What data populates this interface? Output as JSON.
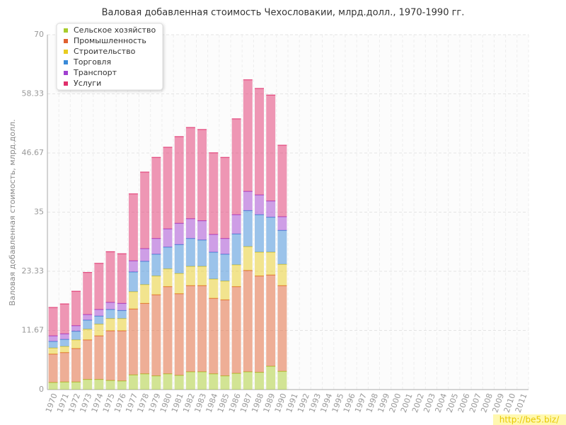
{
  "chart_data": {
    "type": "stacked_bar",
    "title": "Валовая добавленная стоимость Чехословакии, млрд.долл., 1970-1990 гг.",
    "y_label": "Валовая добавленная стоимость, млрд.долл.",
    "watermark": "http://be5.biz/",
    "categories": [
      "1970",
      "1971",
      "1972",
      "1973",
      "1974",
      "1975",
      "1976",
      "1977",
      "1978",
      "1979",
      "1980",
      "1981",
      "1982",
      "1983",
      "1984",
      "1985",
      "1986",
      "1987",
      "1988",
      "1989",
      "1990",
      "1991",
      "1992",
      "1993",
      "1994",
      "1995",
      "1996",
      "1997",
      "1998",
      "1999",
      "2000",
      "2001",
      "2002",
      "2003",
      "2004",
      "2005",
      "2006",
      "2007",
      "2008",
      "2009",
      "2010",
      "2011"
    ],
    "series": [
      {
        "name": "Сельское хозяйство",
        "color": "#a8cc2c",
        "values": [
          1.4,
          1.5,
          1.5,
          2.0,
          2.0,
          1.8,
          1.7,
          2.9,
          3.1,
          2.7,
          3.1,
          2.8,
          3.5,
          3.5,
          3.1,
          2.7,
          3.2,
          3.5,
          3.4,
          4.6,
          3.6,
          null,
          null,
          null,
          null,
          null,
          null,
          null,
          null,
          null,
          null,
          null,
          null,
          null,
          null,
          null,
          null,
          null,
          null,
          null,
          null,
          null
        ]
      },
      {
        "name": "Промышленность",
        "color": "#e06030",
        "values": [
          5.6,
          5.8,
          6.6,
          7.8,
          8.6,
          9.8,
          9.9,
          13.0,
          13.9,
          16.0,
          17.2,
          16.1,
          17.0,
          17.0,
          14.9,
          15.0,
          17.1,
          20.0,
          19.0,
          18.0,
          16.9,
          null,
          null,
          null,
          null,
          null,
          null,
          null,
          null,
          null,
          null,
          null,
          null,
          null,
          null,
          null,
          null,
          null,
          null,
          null,
          null,
          null
        ]
      },
      {
        "name": "Строительство",
        "color": "#e8cc20",
        "values": [
          1.2,
          1.2,
          1.7,
          2.1,
          2.3,
          2.4,
          2.4,
          3.4,
          3.7,
          3.7,
          3.5,
          4.0,
          3.8,
          3.8,
          3.8,
          3.7,
          4.3,
          4.7,
          4.7,
          4.5,
          4.2,
          null,
          null,
          null,
          null,
          null,
          null,
          null,
          null,
          null,
          null,
          null,
          null,
          null,
          null,
          null,
          null,
          null,
          null,
          null,
          null,
          null
        ]
      },
      {
        "name": "Торговля",
        "color": "#3a8ad8",
        "values": [
          1.3,
          1.4,
          1.7,
          1.8,
          1.6,
          1.8,
          1.6,
          3.9,
          4.6,
          4.3,
          4.3,
          5.7,
          5.5,
          5.2,
          5.3,
          5.3,
          6.1,
          7.1,
          7.4,
          6.9,
          6.7,
          null,
          null,
          null,
          null,
          null,
          null,
          null,
          null,
          null,
          null,
          null,
          null,
          null,
          null,
          null,
          null,
          null,
          null,
          null,
          null,
          null
        ]
      },
      {
        "name": "Транспорт",
        "color": "#a040d0",
        "values": [
          1.1,
          1.1,
          1.1,
          1.1,
          1.3,
          1.4,
          1.4,
          2.2,
          2.5,
          3.1,
          3.6,
          4.2,
          3.9,
          3.8,
          3.5,
          3.1,
          3.8,
          3.8,
          3.9,
          3.2,
          2.7,
          null,
          null,
          null,
          null,
          null,
          null,
          null,
          null,
          null,
          null,
          null,
          null,
          null,
          null,
          null,
          null,
          null,
          null,
          null,
          null,
          null
        ]
      },
      {
        "name": "Услуги",
        "color": "#e0306c",
        "values": [
          5.6,
          5.9,
          6.8,
          8.3,
          9.1,
          10.0,
          9.8,
          13.2,
          15.1,
          16.0,
          16.1,
          17.1,
          18.0,
          18.0,
          16.1,
          16.0,
          18.9,
          22.0,
          21.0,
          20.9,
          14.1,
          null,
          null,
          null,
          null,
          null,
          null,
          null,
          null,
          null,
          null,
          null,
          null,
          null,
          null,
          null,
          null,
          null,
          null,
          null,
          null,
          null
        ]
      }
    ],
    "ylim": [
      0,
      70
    ],
    "yticks": [
      0,
      11.67,
      23.33,
      35,
      46.67,
      58.33,
      70
    ],
    "grid": true,
    "legend": "top-left"
  }
}
